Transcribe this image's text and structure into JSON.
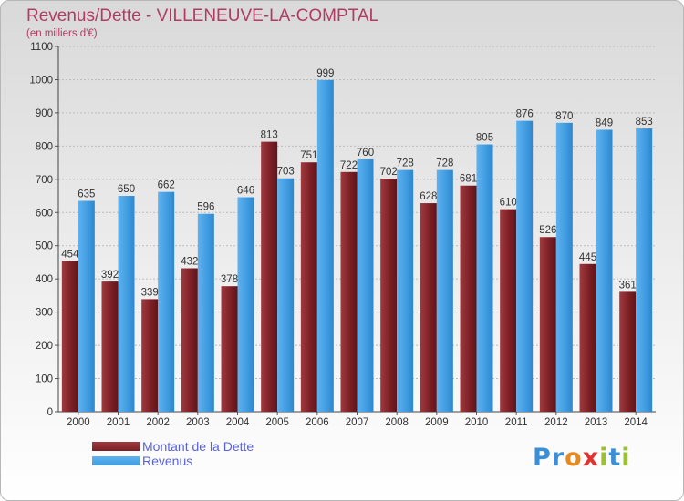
{
  "title": "Revenus/Dette - VILLENEUVE-LA-COMPTAL",
  "subtitle": "(en milliers d'€)",
  "logo": {
    "text": "Proxiti",
    "letters": [
      "P",
      "r",
      "o",
      "x",
      "i",
      "t",
      "i"
    ]
  },
  "colors": {
    "title": "#b03c64",
    "dette": "#7a1f24",
    "revenus": "#3f9be0",
    "legend_text": "#5a63d6",
    "logo_letters": [
      "#3b8fd6",
      "#3b8fd6",
      "#e8891f",
      "#e0322f",
      "#9bc12f",
      "#3b8fd6",
      "#9bc12f"
    ]
  },
  "chart_data": {
    "type": "bar",
    "categories": [
      "2000",
      "2001",
      "2002",
      "2003",
      "2004",
      "2005",
      "2006",
      "2007",
      "2008",
      "2009",
      "2010",
      "2011",
      "2012",
      "2013",
      "2014"
    ],
    "series": [
      {
        "name": "Montant de la Dette",
        "values": [
          454,
          392,
          339,
          432,
          378,
          813,
          751,
          722,
          702,
          628,
          681,
          610,
          526,
          445,
          361
        ]
      },
      {
        "name": "Revenus",
        "values": [
          635,
          650,
          662,
          596,
          646,
          703,
          999,
          760,
          728,
          728,
          805,
          876,
          870,
          849,
          853
        ]
      }
    ],
    "ylim": [
      0,
      1100
    ],
    "yticks": [
      0,
      100,
      200,
      300,
      400,
      500,
      600,
      700,
      800,
      900,
      1000,
      1100
    ],
    "grid": true,
    "legend": "bottom-left"
  }
}
